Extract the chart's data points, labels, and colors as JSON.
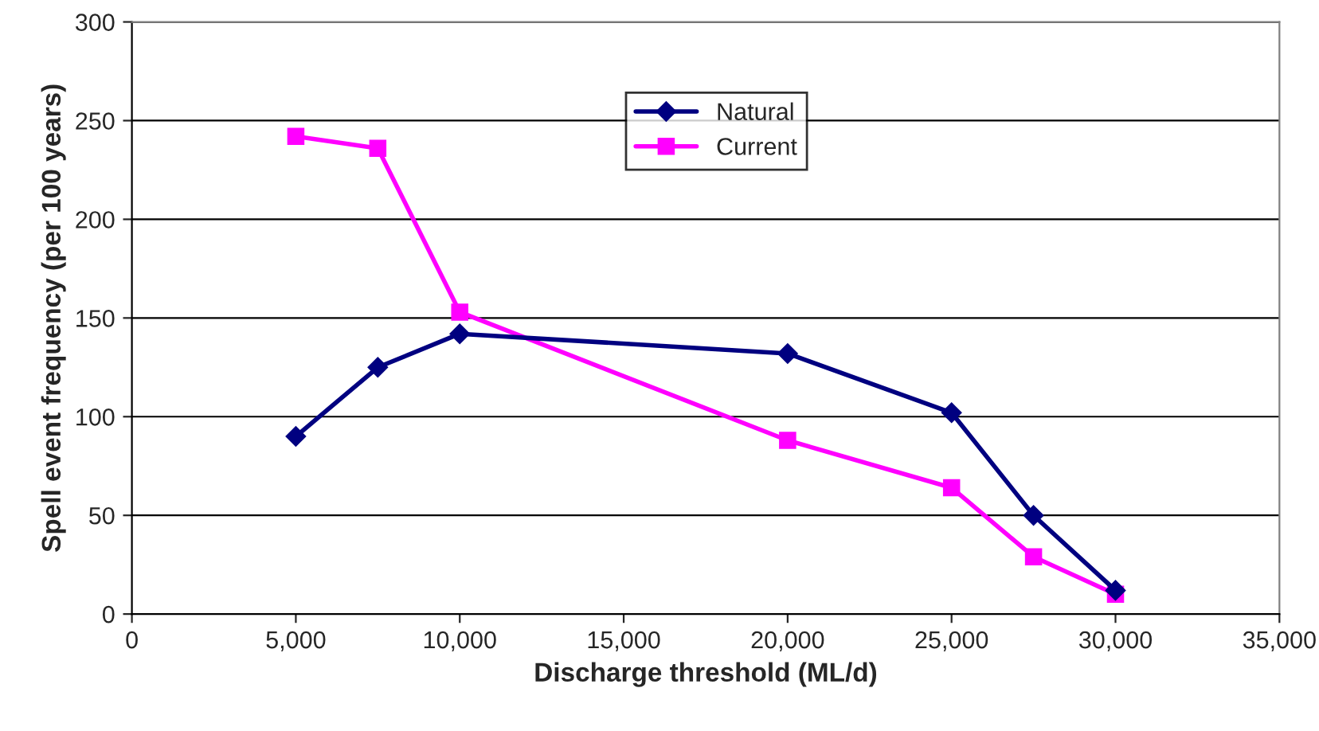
{
  "chart_data": {
    "type": "line",
    "xlabel": "Discharge threshold (ML/d)",
    "ylabel": "Spell event frequency (per 100 years)",
    "x": [
      5000,
      7500,
      10000,
      20000,
      25000,
      27500,
      30000
    ],
    "series": [
      {
        "name": "Natural",
        "color": "#000080",
        "marker": "diamond",
        "values": [
          90,
          125,
          142,
          132,
          102,
          50,
          12
        ]
      },
      {
        "name": "Current",
        "color": "#ff00ff",
        "marker": "square",
        "values": [
          242,
          236,
          153,
          88,
          64,
          29,
          10
        ]
      }
    ],
    "xlim": [
      0,
      35000
    ],
    "xticks": [
      {
        "value": 0,
        "label": "0"
      },
      {
        "value": 5000,
        "label": "5,000"
      },
      {
        "value": 10000,
        "label": "10,000"
      },
      {
        "value": 15000,
        "label": "15,000"
      },
      {
        "value": 20000,
        "label": "20,000"
      },
      {
        "value": 25000,
        "label": "25,000"
      },
      {
        "value": 30000,
        "label": "30,000"
      },
      {
        "value": 35000,
        "label": "35,000"
      }
    ],
    "ylim": [
      0,
      300
    ],
    "yticks": [
      0,
      50,
      100,
      150,
      200,
      250,
      300
    ],
    "grid": "y",
    "legend": "top",
    "line_style": "solid"
  }
}
